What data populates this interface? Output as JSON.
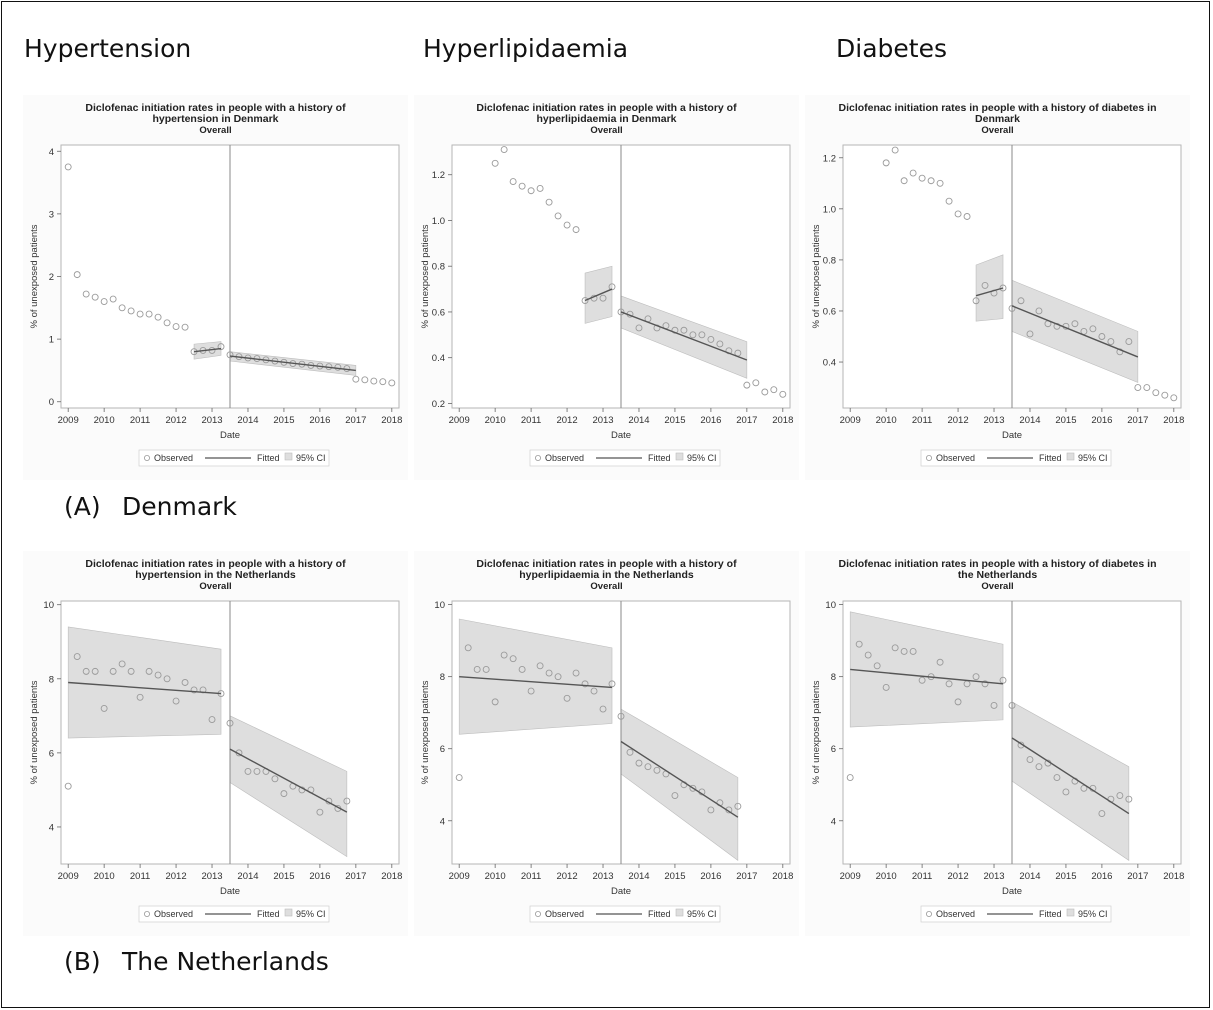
{
  "column_headers": [
    "Hypertension",
    "Hyperlipidaemia",
    "Diabetes"
  ],
  "sections": [
    {
      "tag": "(A)",
      "name": "Denmark"
    },
    {
      "tag": "(B)",
      "name": "The Netherlands"
    }
  ],
  "colors": {
    "marker": "#9a9a9a",
    "fit": "#555555",
    "ci": "#dedede",
    "ci_edge": "#bdbdbd",
    "frame": "#111111"
  },
  "chart_data": [
    {
      "id": "dk-hypertension",
      "type": "scatter",
      "title_lines": [
        "Diclofenac initiation rates in people with a history of",
        "hypertension in Denmark"
      ],
      "subtitle": "Overall",
      "xlabel": "Date",
      "ylabel": "% of unexposed patients",
      "xlim": [
        2008.8,
        2018.2
      ],
      "ylim": [
        -0.1,
        4.1
      ],
      "xticks": [
        2009,
        2010,
        2011,
        2012,
        2013,
        2014,
        2015,
        2016,
        2017,
        2018
      ],
      "yticks": [
        0,
        1,
        2,
        3,
        4
      ],
      "intervention_x": 2013.5,
      "legend": [
        "Observed",
        "Fitted",
        "95% CI"
      ],
      "legend_position": "bottom",
      "observed": {
        "x": [
          2009.0,
          2009.25,
          2009.5,
          2009.75,
          2010.0,
          2010.25,
          2010.5,
          2010.75,
          2011.0,
          2011.25,
          2011.5,
          2011.75,
          2012.0,
          2012.25,
          2012.5,
          2012.75,
          2013.0,
          2013.25,
          2013.5,
          2013.75,
          2014.0,
          2014.25,
          2014.5,
          2014.75,
          2015.0,
          2015.25,
          2015.5,
          2015.75,
          2016.0,
          2016.25,
          2016.5,
          2016.75,
          2017.0,
          2017.25,
          2017.5,
          2017.75,
          2018.0
        ],
        "y": [
          3.75,
          2.03,
          1.72,
          1.67,
          1.6,
          1.64,
          1.5,
          1.45,
          1.4,
          1.4,
          1.35,
          1.26,
          1.2,
          1.19,
          0.8,
          0.82,
          0.82,
          0.88,
          0.75,
          0.72,
          0.7,
          0.69,
          0.67,
          0.65,
          0.63,
          0.61,
          0.6,
          0.58,
          0.57,
          0.56,
          0.55,
          0.53,
          0.36,
          0.35,
          0.33,
          0.32,
          0.3
        ]
      },
      "fit_segments": [
        [
          [
            2012.5,
            0.8
          ],
          [
            2013.25,
            0.85
          ]
        ],
        [
          [
            2013.5,
            0.73
          ],
          [
            2017.0,
            0.5
          ]
        ]
      ],
      "ci_segments": [
        {
          "x": [
            2012.5,
            2013.25
          ],
          "lower": [
            0.68,
            0.74
          ],
          "upper": [
            0.92,
            0.96
          ]
        },
        {
          "x": [
            2013.5,
            2017.0
          ],
          "lower": [
            0.65,
            0.42
          ],
          "upper": [
            0.8,
            0.58
          ]
        }
      ]
    },
    {
      "id": "dk-hyperlipidaemia",
      "type": "scatter",
      "title_lines": [
        "Diclofenac initiation rates in people with a history of",
        "hyperlipidaemia in Denmark"
      ],
      "subtitle": "Overall",
      "xlabel": "Date",
      "ylabel": "% of unexposed patients",
      "xlim": [
        2008.8,
        2018.2
      ],
      "ylim": [
        0.18,
        1.33
      ],
      "xticks": [
        2009,
        2010,
        2011,
        2012,
        2013,
        2014,
        2015,
        2016,
        2017,
        2018
      ],
      "yticks": [
        0.2,
        0.4,
        0.6,
        0.8,
        1.0,
        1.2
      ],
      "yticklabels": [
        "0.2",
        "0.4",
        "0.6",
        "0.8",
        "1.0",
        "1.2"
      ],
      "intervention_x": 2013.5,
      "legend": [
        "Observed",
        "Fitted",
        "95% CI"
      ],
      "legend_position": "bottom",
      "observed": {
        "x": [
          2010.0,
          2010.25,
          2010.5,
          2010.75,
          2011.0,
          2011.25,
          2011.5,
          2011.75,
          2012.0,
          2012.25,
          2012.5,
          2012.75,
          2013.0,
          2013.25,
          2013.5,
          2013.75,
          2014.0,
          2014.25,
          2014.5,
          2014.75,
          2015.0,
          2015.25,
          2015.5,
          2015.75,
          2016.0,
          2016.25,
          2016.5,
          2016.75,
          2017.0,
          2017.25,
          2017.5,
          2017.75,
          2018.0
        ],
        "y": [
          1.25,
          1.31,
          1.17,
          1.15,
          1.13,
          1.14,
          1.08,
          1.02,
          0.98,
          0.96,
          0.65,
          0.66,
          0.66,
          0.71,
          0.6,
          0.59,
          0.53,
          0.57,
          0.53,
          0.54,
          0.52,
          0.52,
          0.5,
          0.5,
          0.48,
          0.46,
          0.43,
          0.42,
          0.28,
          0.29,
          0.25,
          0.26,
          0.24
        ]
      },
      "fit_segments": [
        [
          [
            2012.5,
            0.65
          ],
          [
            2013.25,
            0.7
          ]
        ],
        [
          [
            2013.5,
            0.6
          ],
          [
            2017.0,
            0.39
          ]
        ]
      ],
      "ci_segments": [
        {
          "x": [
            2012.5,
            2013.25
          ],
          "lower": [
            0.55,
            0.58
          ],
          "upper": [
            0.77,
            0.8
          ]
        },
        {
          "x": [
            2013.5,
            2017.0
          ],
          "lower": [
            0.53,
            0.31
          ],
          "upper": [
            0.67,
            0.47
          ]
        }
      ]
    },
    {
      "id": "dk-diabetes",
      "type": "scatter",
      "title_lines": [
        "Diclofenac initiation rates in people with a history of diabetes in",
        "Denmark"
      ],
      "subtitle": "Overall",
      "xlabel": "Date",
      "ylabel": "% of unexposed patients",
      "xlim": [
        2008.8,
        2018.2
      ],
      "ylim": [
        0.22,
        1.25
      ],
      "xticks": [
        2009,
        2010,
        2011,
        2012,
        2013,
        2014,
        2015,
        2016,
        2017,
        2018
      ],
      "yticks": [
        0.4,
        0.6,
        0.8,
        1.0,
        1.2
      ],
      "yticklabels": [
        "0.4",
        "0.6",
        "0.8",
        "1.0",
        "1.2"
      ],
      "intervention_x": 2013.5,
      "legend": [
        "Observed",
        "Fitted",
        "95% CI"
      ],
      "legend_position": "bottom",
      "observed": {
        "x": [
          2010.0,
          2010.25,
          2010.5,
          2010.75,
          2011.0,
          2011.25,
          2011.5,
          2011.75,
          2012.0,
          2012.25,
          2012.5,
          2012.75,
          2013.0,
          2013.25,
          2013.5,
          2013.75,
          2014.0,
          2014.25,
          2014.5,
          2014.75,
          2015.0,
          2015.25,
          2015.5,
          2015.75,
          2016.0,
          2016.25,
          2016.5,
          2016.75,
          2017.0,
          2017.25,
          2017.5,
          2017.75,
          2018.0
        ],
        "y": [
          1.18,
          1.23,
          1.11,
          1.14,
          1.12,
          1.11,
          1.1,
          1.03,
          0.98,
          0.97,
          0.64,
          0.7,
          0.67,
          0.69,
          0.61,
          0.64,
          0.51,
          0.6,
          0.55,
          0.54,
          0.54,
          0.55,
          0.52,
          0.53,
          0.5,
          0.48,
          0.44,
          0.48,
          0.3,
          0.3,
          0.28,
          0.27,
          0.26
        ]
      },
      "fit_segments": [
        [
          [
            2012.5,
            0.66
          ],
          [
            2013.25,
            0.69
          ]
        ],
        [
          [
            2013.5,
            0.62
          ],
          [
            2017.0,
            0.42
          ]
        ]
      ],
      "ci_segments": [
        {
          "x": [
            2012.5,
            2013.25
          ],
          "lower": [
            0.56,
            0.57
          ],
          "upper": [
            0.78,
            0.82
          ]
        },
        {
          "x": [
            2013.5,
            2017.0
          ],
          "lower": [
            0.52,
            0.32
          ],
          "upper": [
            0.72,
            0.52
          ]
        }
      ]
    },
    {
      "id": "nl-hypertension",
      "type": "scatter",
      "title_lines": [
        "Diclofenac initiation rates in people with a history of",
        "hypertension in the Netherlands"
      ],
      "subtitle": "Overall",
      "xlabel": "Date",
      "ylabel": "% of unexposed patients",
      "xlim": [
        2008.8,
        2018.2
      ],
      "ylim": [
        3.0,
        10.1
      ],
      "xticks": [
        2009,
        2010,
        2011,
        2012,
        2013,
        2014,
        2015,
        2016,
        2017,
        2018
      ],
      "yticks": [
        4,
        6,
        8,
        10
      ],
      "intervention_x": 2013.5,
      "legend": [
        "Observed",
        "Fitted",
        "95% CI"
      ],
      "legend_position": "bottom",
      "observed": {
        "x": [
          2009.0,
          2009.25,
          2009.5,
          2009.75,
          2010.0,
          2010.25,
          2010.5,
          2010.75,
          2011.0,
          2011.25,
          2011.5,
          2011.75,
          2012.0,
          2012.25,
          2012.5,
          2012.75,
          2013.0,
          2013.25,
          2013.5,
          2013.75,
          2014.0,
          2014.25,
          2014.5,
          2014.75,
          2015.0,
          2015.25,
          2015.5,
          2015.75,
          2016.0,
          2016.25,
          2016.5,
          2016.75
        ],
        "y": [
          5.1,
          8.6,
          8.2,
          8.2,
          7.2,
          8.2,
          8.4,
          8.2,
          7.5,
          8.2,
          8.1,
          8.0,
          7.4,
          7.9,
          7.7,
          7.7,
          6.9,
          7.6,
          6.8,
          6.0,
          5.5,
          5.5,
          5.5,
          5.3,
          4.9,
          5.1,
          5.0,
          5.0,
          4.4,
          4.7,
          4.5,
          4.7
        ]
      },
      "fit_segments": [
        [
          [
            2009.0,
            7.9
          ],
          [
            2013.25,
            7.6
          ]
        ],
        [
          [
            2013.5,
            6.1
          ],
          [
            2016.75,
            4.4
          ]
        ]
      ],
      "ci_segments": [
        {
          "x": [
            2009.0,
            2013.25
          ],
          "lower": [
            6.4,
            6.5
          ],
          "upper": [
            9.4,
            8.8
          ]
        },
        {
          "x": [
            2013.5,
            2016.75
          ],
          "lower": [
            5.2,
            3.2
          ],
          "upper": [
            7.0,
            5.5
          ]
        }
      ]
    },
    {
      "id": "nl-hyperlipidaemia",
      "type": "scatter",
      "title_lines": [
        "Diclofenac initiation rates in people with a history of",
        "hyperlipidaemia in the Netherlands"
      ],
      "subtitle": "Overall",
      "xlabel": "Date",
      "ylabel": "% of unexposed patients",
      "xlim": [
        2008.8,
        2018.2
      ],
      "ylim": [
        2.8,
        10.1
      ],
      "xticks": [
        2009,
        2010,
        2011,
        2012,
        2013,
        2014,
        2015,
        2016,
        2017,
        2018
      ],
      "yticks": [
        4,
        6,
        8,
        10
      ],
      "intervention_x": 2013.5,
      "legend": [
        "Observed",
        "Fitted",
        "95% CI"
      ],
      "legend_position": "bottom",
      "observed": {
        "x": [
          2009.0,
          2009.25,
          2009.5,
          2009.75,
          2010.0,
          2010.25,
          2010.5,
          2010.75,
          2011.0,
          2011.25,
          2011.5,
          2011.75,
          2012.0,
          2012.25,
          2012.5,
          2012.75,
          2013.0,
          2013.25,
          2013.5,
          2013.75,
          2014.0,
          2014.25,
          2014.5,
          2014.75,
          2015.0,
          2015.25,
          2015.5,
          2015.75,
          2016.0,
          2016.25,
          2016.5,
          2016.75
        ],
        "y": [
          5.2,
          8.8,
          8.2,
          8.2,
          7.3,
          8.6,
          8.5,
          8.2,
          7.6,
          8.3,
          8.1,
          8.0,
          7.4,
          8.1,
          7.8,
          7.6,
          7.1,
          7.8,
          6.9,
          5.9,
          5.6,
          5.5,
          5.4,
          5.3,
          4.7,
          5.0,
          4.9,
          4.8,
          4.3,
          4.5,
          4.3,
          4.4
        ]
      },
      "fit_segments": [
        [
          [
            2009.0,
            8.0
          ],
          [
            2013.25,
            7.7
          ]
        ],
        [
          [
            2013.5,
            6.2
          ],
          [
            2016.75,
            4.1
          ]
        ]
      ],
      "ci_segments": [
        {
          "x": [
            2009.0,
            2013.25
          ],
          "lower": [
            6.4,
            6.7
          ],
          "upper": [
            9.6,
            8.8
          ]
        },
        {
          "x": [
            2013.5,
            2016.75
          ],
          "lower": [
            5.3,
            2.9
          ],
          "upper": [
            7.1,
            5.2
          ]
        }
      ]
    },
    {
      "id": "nl-diabetes",
      "type": "scatter",
      "title_lines": [
        "Diclofenac initiation rates in people with a history of diabetes in",
        "the Netherlands"
      ],
      "subtitle": "Overall",
      "xlabel": "Date",
      "ylabel": "% of unexposed patients",
      "xlim": [
        2008.8,
        2018.2
      ],
      "ylim": [
        2.8,
        10.1
      ],
      "xticks": [
        2009,
        2010,
        2011,
        2012,
        2013,
        2014,
        2015,
        2016,
        2017,
        2018
      ],
      "yticks": [
        4,
        6,
        8,
        10
      ],
      "intervention_x": 2013.5,
      "legend": [
        "Observed",
        "Fitted",
        "95% CI"
      ],
      "legend_position": "bottom",
      "observed": {
        "x": [
          2009.0,
          2009.25,
          2009.5,
          2009.75,
          2010.0,
          2010.25,
          2010.5,
          2010.75,
          2011.0,
          2011.25,
          2011.5,
          2011.75,
          2012.0,
          2012.25,
          2012.5,
          2012.75,
          2013.0,
          2013.25,
          2013.5,
          2013.75,
          2014.0,
          2014.25,
          2014.5,
          2014.75,
          2015.0,
          2015.25,
          2015.5,
          2015.75,
          2016.0,
          2016.25,
          2016.5,
          2016.75
        ],
        "y": [
          5.2,
          8.9,
          8.6,
          8.3,
          7.7,
          8.8,
          8.7,
          8.7,
          7.9,
          8.0,
          8.4,
          7.8,
          7.3,
          7.8,
          8.0,
          7.8,
          7.2,
          7.9,
          7.2,
          6.1,
          5.7,
          5.5,
          5.6,
          5.2,
          4.8,
          5.1,
          4.9,
          4.9,
          4.2,
          4.6,
          4.7,
          4.6
        ]
      },
      "fit_segments": [
        [
          [
            2009.0,
            8.2
          ],
          [
            2013.25,
            7.8
          ]
        ],
        [
          [
            2013.5,
            6.3
          ],
          [
            2016.75,
            4.2
          ]
        ]
      ],
      "ci_segments": [
        {
          "x": [
            2009.0,
            2013.25
          ],
          "lower": [
            6.6,
            6.8
          ],
          "upper": [
            9.8,
            8.9
          ]
        },
        {
          "x": [
            2013.5,
            2016.75
          ],
          "lower": [
            5.1,
            2.9
          ],
          "upper": [
            7.3,
            5.5
          ]
        }
      ]
    }
  ]
}
